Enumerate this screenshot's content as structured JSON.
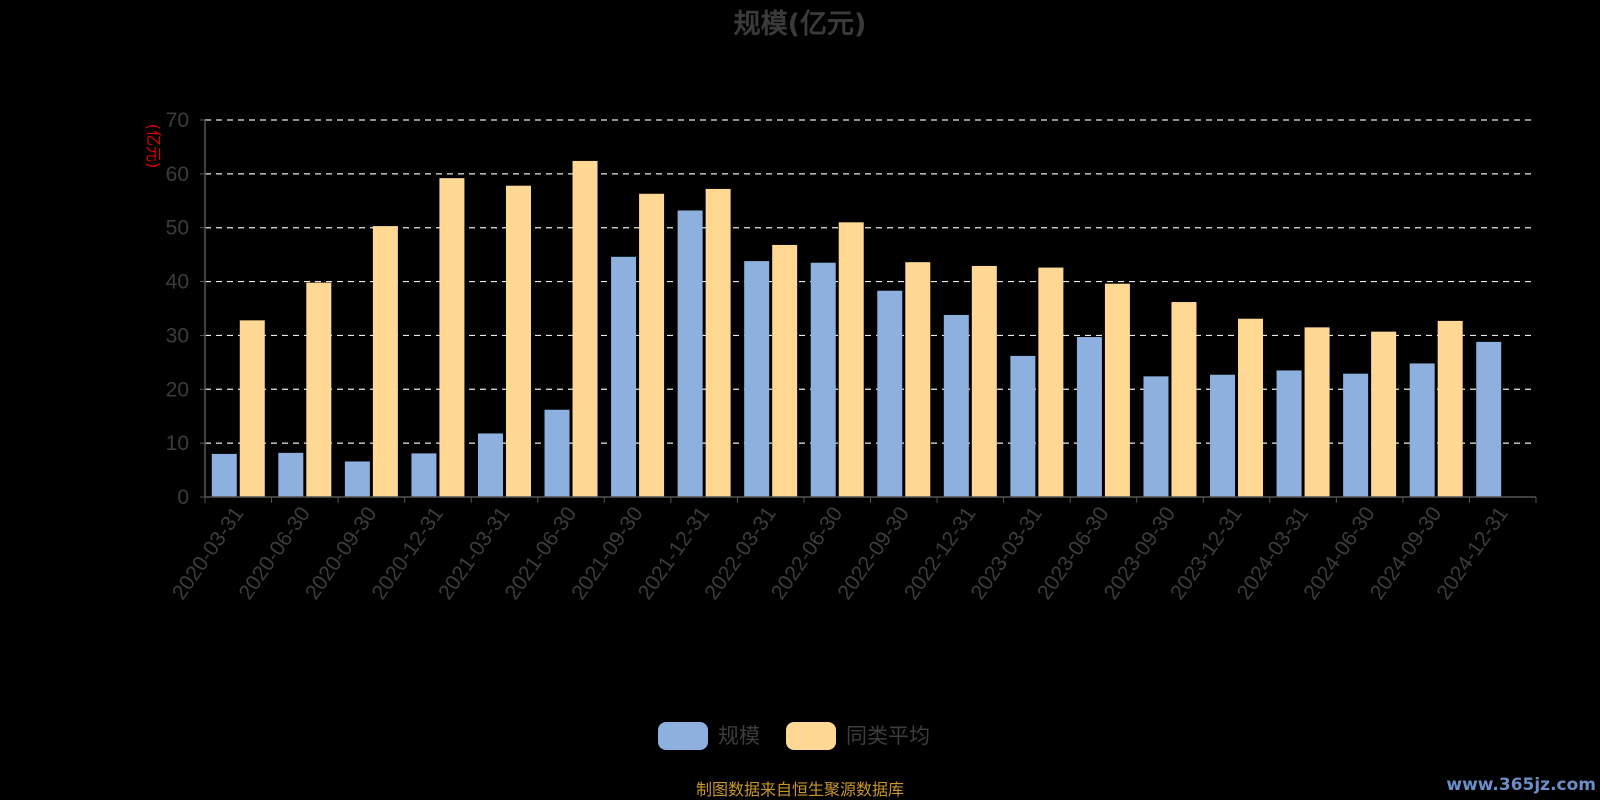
{
  "source_note": "制图数据来自恒生聚源数据库",
  "watermark": "www.365jz.com",
  "colors": {
    "background": "#000000",
    "series_scale": "#8eb0de",
    "series_avg": "#ffd994",
    "grid": "#e8e8e8",
    "axis": "#555555",
    "y_unit": "#e00000",
    "source_note": "#c8962a"
  },
  "chart_data": {
    "type": "bar",
    "title": "规模(亿元)",
    "ylabel": "(亿元)",
    "xlabel": "",
    "ylim": [
      0,
      70
    ],
    "yticks": [
      0,
      10,
      20,
      30,
      40,
      50,
      60,
      70
    ],
    "grid": true,
    "legend_position": "bottom-center",
    "categories": [
      "2020-03-31",
      "2020-06-30",
      "2020-09-30",
      "2020-12-31",
      "2021-03-31",
      "2021-06-30",
      "2021-09-30",
      "2021-12-31",
      "2022-03-31",
      "2022-06-30",
      "2022-09-30",
      "2022-12-31",
      "2023-03-31",
      "2023-06-30",
      "2023-09-30",
      "2023-12-31",
      "2024-03-31",
      "2024-06-30",
      "2024-09-30",
      "2024-12-31"
    ],
    "series": [
      {
        "name": "规模",
        "color": "#8eb0de",
        "values": [
          8.0,
          8.2,
          6.6,
          8.1,
          11.8,
          16.2,
          44.6,
          53.2,
          43.8,
          43.5,
          38.3,
          33.8,
          26.2,
          29.7,
          22.4,
          22.7,
          23.5,
          22.9,
          24.8,
          28.8
        ]
      },
      {
        "name": "同类平均",
        "color": "#ffd994",
        "values": [
          32.8,
          39.8,
          50.3,
          59.2,
          57.8,
          62.4,
          56.3,
          57.2,
          46.8,
          51.0,
          43.6,
          42.9,
          42.6,
          39.6,
          36.2,
          33.1,
          31.5,
          30.7,
          32.7,
          null
        ]
      }
    ]
  }
}
